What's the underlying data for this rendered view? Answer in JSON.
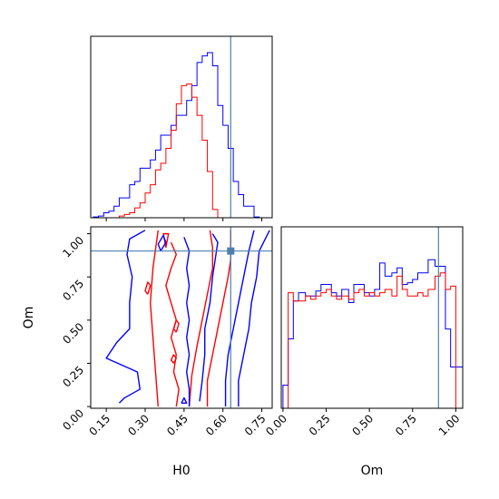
{
  "chart_data": [
    {
      "type": "histogram",
      "panel": "H0 marginal",
      "xlim": [
        0.09,
        0.79
      ],
      "series": [
        {
          "color": "#0000ff",
          "edges": [
            0.1,
            0.12,
            0.14,
            0.16,
            0.18,
            0.2,
            0.22,
            0.24,
            0.26,
            0.28,
            0.3,
            0.32,
            0.34,
            0.36,
            0.38,
            0.4,
            0.42,
            0.44,
            0.46,
            0.48,
            0.5,
            0.52,
            0.54,
            0.56,
            0.58,
            0.6,
            0.62,
            0.64,
            0.66,
            0.68,
            0.7,
            0.72,
            0.74
          ],
          "counts": [
            0.005,
            0.01,
            0.03,
            0.04,
            0.07,
            0.12,
            0.12,
            0.2,
            0.22,
            0.3,
            0.3,
            0.35,
            0.41,
            0.5,
            0.5,
            0.56,
            0.62,
            0.62,
            0.71,
            0.8,
            0.94,
            0.98,
            1.0,
            0.92,
            0.68,
            0.56,
            0.42,
            0.22,
            0.14,
            0.07,
            0.07,
            0.005
          ]
        },
        {
          "color": "#ff0000",
          "edges": [
            0.2,
            0.22,
            0.24,
            0.26,
            0.28,
            0.3,
            0.32,
            0.34,
            0.36,
            0.38,
            0.4,
            0.42,
            0.44,
            0.46,
            0.48,
            0.5,
            0.52,
            0.54,
            0.56,
            0.58
          ],
          "counts": [
            0.01,
            0.02,
            0.03,
            0.06,
            0.09,
            0.15,
            0.2,
            0.29,
            0.33,
            0.42,
            0.53,
            0.69,
            0.8,
            0.81,
            0.73,
            0.62,
            0.47,
            0.28,
            0.05
          ]
        }
      ],
      "truth_line": 0.63
    },
    {
      "type": "contour",
      "panel": "H0 vs Om joint",
      "xlabel": "H0",
      "ylabel": "Om",
      "xlim": [
        0.09,
        0.79
      ],
      "ylim": [
        -0.01,
        1.04
      ],
      "xticks": [
        "0.15",
        "0.30",
        "0.45",
        "0.60",
        "0.75"
      ],
      "yticks": [
        "0.00",
        "0.25",
        "0.50",
        "0.75",
        "1.00"
      ],
      "truth_point": [
        0.63,
        0.9
      ],
      "series": [
        {
          "color": "#ff0000",
          "contours": [
            [
              [
                0.35,
                0.0
              ],
              [
                0.34,
                0.2
              ],
              [
                0.33,
                0.4
              ],
              [
                0.32,
                0.6
              ],
              [
                0.33,
                0.8
              ],
              [
                0.35,
                1.02
              ]
            ],
            [
              [
                0.47,
                0.0
              ],
              [
                0.48,
                0.18
              ],
              [
                0.5,
                0.35
              ],
              [
                0.52,
                0.5
              ],
              [
                0.54,
                0.65
              ],
              [
                0.56,
                0.8
              ],
              [
                0.56,
                0.92
              ],
              [
                0.55,
                1.02
              ]
            ],
            [
              [
                0.54,
                0.0
              ],
              [
                0.54,
                0.15
              ],
              [
                0.56,
                0.3
              ],
              [
                0.58,
                0.45
              ],
              [
                0.6,
                0.6
              ],
              [
                0.62,
                0.75
              ],
              [
                0.63,
                0.85
              ],
              [
                0.63,
                1.02
              ]
            ],
            [
              [
                0.4,
                0.95
              ],
              [
                0.42,
                0.88
              ],
              [
                0.4,
                0.8
              ],
              [
                0.38,
                0.7
              ],
              [
                0.4,
                0.6
              ],
              [
                0.42,
                0.5
              ],
              [
                0.4,
                0.4
              ],
              [
                0.42,
                0.3
              ],
              [
                0.41,
                0.2
              ],
              [
                0.43,
                0.1
              ],
              [
                0.42,
                0.0
              ]
            ],
            [
              [
                0.38,
                0.92
              ],
              [
                0.39,
                1.0
              ],
              [
                0.37,
                1.0
              ],
              [
                0.38,
                0.92
              ]
            ],
            [
              [
                0.31,
                0.65
              ],
              [
                0.32,
                0.7
              ],
              [
                0.31,
                0.72
              ],
              [
                0.3,
                0.67
              ],
              [
                0.31,
                0.65
              ]
            ],
            [
              [
                0.42,
                0.43
              ],
              [
                0.43,
                0.48
              ],
              [
                0.42,
                0.5
              ],
              [
                0.41,
                0.45
              ],
              [
                0.42,
                0.43
              ]
            ],
            [
              [
                0.41,
                0.25
              ],
              [
                0.42,
                0.28
              ],
              [
                0.41,
                0.3
              ],
              [
                0.4,
                0.27
              ],
              [
                0.41,
                0.25
              ]
            ]
          ]
        },
        {
          "color": "#0000ff",
          "contours": [
            [
              [
                0.2,
                0.02
              ],
              [
                0.22,
                0.05
              ],
              [
                0.28,
                0.1
              ],
              [
                0.27,
                0.2
              ],
              [
                0.15,
                0.28
              ],
              [
                0.19,
                0.37
              ],
              [
                0.24,
                0.45
              ],
              [
                0.24,
                0.6
              ],
              [
                0.25,
                0.75
              ],
              [
                0.23,
                0.88
              ],
              [
                0.24,
                0.97
              ],
              [
                0.3,
                1.02
              ]
            ],
            [
              [
                0.66,
                0.0
              ],
              [
                0.66,
                0.15
              ],
              [
                0.68,
                0.3
              ],
              [
                0.7,
                0.45
              ],
              [
                0.71,
                0.6
              ],
              [
                0.73,
                0.75
              ],
              [
                0.74,
                0.9
              ],
              [
                0.78,
                1.02
              ]
            ],
            [
              [
                0.61,
                0.0
              ],
              [
                0.61,
                0.15
              ],
              [
                0.62,
                0.3
              ],
              [
                0.64,
                0.45
              ],
              [
                0.66,
                0.6
              ],
              [
                0.68,
                0.75
              ],
              [
                0.7,
                0.9
              ],
              [
                0.72,
                1.02
              ]
            ],
            [
              [
                0.56,
                1.0
              ],
              [
                0.58,
                0.95
              ],
              [
                0.57,
                0.85
              ],
              [
                0.56,
                0.75
              ],
              [
                0.55,
                0.6
              ],
              [
                0.53,
                0.45
              ],
              [
                0.53,
                0.3
              ],
              [
                0.52,
                0.15
              ],
              [
                0.51,
                0.03
              ]
            ],
            [
              [
                0.45,
                0.98
              ],
              [
                0.47,
                0.9
              ],
              [
                0.46,
                0.8
              ],
              [
                0.47,
                0.7
              ],
              [
                0.46,
                0.6
              ],
              [
                0.47,
                0.5
              ],
              [
                0.46,
                0.4
              ],
              [
                0.47,
                0.3
              ],
              [
                0.46,
                0.2
              ],
              [
                0.47,
                0.1
              ],
              [
                0.47,
                0.0
              ]
            ],
            [
              [
                0.36,
                0.9
              ],
              [
                0.38,
                0.95
              ],
              [
                0.37,
                0.99
              ],
              [
                0.35,
                0.94
              ],
              [
                0.36,
                0.9
              ]
            ],
            [
              [
                0.44,
                0.02
              ],
              [
                0.46,
                0.02
              ],
              [
                0.45,
                0.05
              ],
              [
                0.44,
                0.02
              ]
            ]
          ]
        }
      ]
    },
    {
      "type": "histogram",
      "panel": "Om marginal",
      "xlabel": "Om",
      "xlim": [
        -0.01,
        1.04
      ],
      "xticks": [
        "0.00",
        "0.25",
        "0.50",
        "0.75",
        "1.00"
      ],
      "series": [
        {
          "color": "#0000ff",
          "edges": [
            0.0,
            0.03,
            0.06,
            0.09,
            0.13,
            0.16,
            0.19,
            0.22,
            0.25,
            0.28,
            0.31,
            0.34,
            0.38,
            0.41,
            0.44,
            0.47,
            0.5,
            0.53,
            0.56,
            0.59,
            0.63,
            0.66,
            0.69,
            0.72,
            0.75,
            0.78,
            0.81,
            0.84,
            0.88,
            0.91,
            0.94,
            0.97,
            1.0,
            1.04
          ],
          "counts": [
            0.14,
            0.42,
            0.65,
            0.7,
            0.68,
            0.68,
            0.71,
            0.75,
            0.75,
            0.7,
            0.68,
            0.72,
            0.64,
            0.75,
            0.75,
            0.7,
            0.68,
            0.72,
            0.88,
            0.8,
            0.82,
            0.85,
            0.75,
            0.76,
            0.78,
            0.82,
            0.82,
            0.9,
            0.86,
            0.86,
            0.48,
            0.25,
            0.25
          ]
        },
        {
          "color": "#ff0000",
          "edges": [
            0.0,
            0.03,
            0.06,
            0.09,
            0.13,
            0.16,
            0.19,
            0.22,
            0.25,
            0.28,
            0.31,
            0.34,
            0.38,
            0.41,
            0.44,
            0.47,
            0.5,
            0.53,
            0.56,
            0.59,
            0.63,
            0.66,
            0.69,
            0.72,
            0.75,
            0.78,
            0.81,
            0.84,
            0.88,
            0.91,
            0.94,
            0.97,
            1.0
          ],
          "counts": [
            0.0,
            0.7,
            0.65,
            0.65,
            0.68,
            0.66,
            0.68,
            0.7,
            0.72,
            0.68,
            0.66,
            0.68,
            0.66,
            0.7,
            0.72,
            0.68,
            0.7,
            0.68,
            0.7,
            0.72,
            0.68,
            0.8,
            0.72,
            0.68,
            0.68,
            0.7,
            0.68,
            0.72,
            0.8,
            0.82,
            0.72,
            0.74
          ]
        }
      ],
      "truth_line": 0.9
    }
  ]
}
